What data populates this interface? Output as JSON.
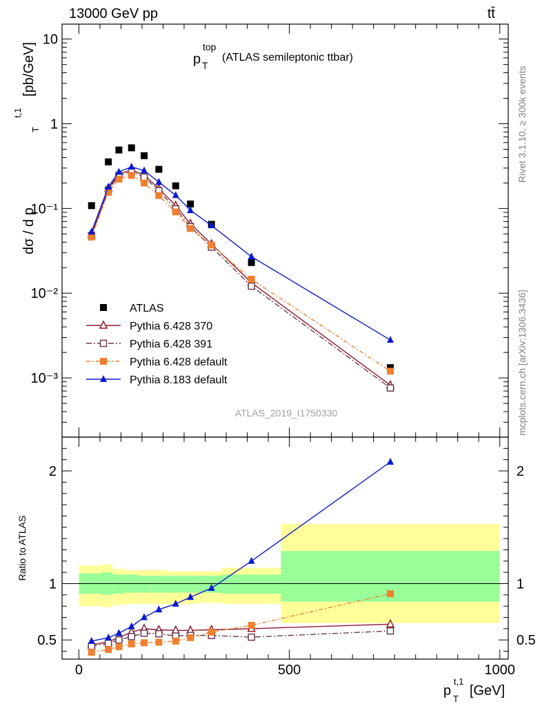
{
  "header": {
    "left": "13000 GeV pp",
    "right": "tt̄"
  },
  "side_labels": {
    "rivet": "Rivet 3.1.10, ≥ 300k events",
    "mcplots": "mcplots.cern.ch [arXiv:1306.3436]"
  },
  "colors": {
    "atlas": "#000000",
    "p370": "#8b1a2b",
    "p391": "#6b3a4a",
    "pdefault": "#f08030",
    "p8183": "#0a1ad0",
    "band_outer": "#ffff99",
    "band_inner": "#99ff99"
  },
  "chart_data": [
    {
      "type": "scatter",
      "title_main": "p",
      "title_sup": "top",
      "title_sub": "T",
      "title_rest": "(ATLAS semileptonic ttbar)",
      "ylabel": "dσ / d p",
      "ylabel_sup": "t,1",
      "ylabel_sub": "T",
      "ylabel_unit": "[pb/GeV]",
      "yscale": "log",
      "ylim": [
        0.0002,
        15
      ],
      "xlim": [
        -40,
        1020
      ],
      "watermark": "ATLAS_2019_I1750330",
      "y_tick_labels": [
        "10",
        "1",
        "10⁻¹",
        "10⁻²",
        "10⁻³"
      ],
      "y_tick_values": [
        10,
        1,
        0.1,
        0.01,
        0.001
      ],
      "x": [
        30,
        70,
        95,
        125,
        155,
        190,
        230,
        265,
        315,
        410,
        740
      ],
      "series": [
        {
          "name": "ATLAS",
          "marker": "square",
          "values": [
            0.108,
            0.355,
            0.49,
            0.52,
            0.42,
            0.29,
            0.185,
            0.113,
            0.065,
            0.023,
            0.00132
          ]
        },
        {
          "name": "Pythia 6.428 370",
          "marker": "triangle-open",
          "values": [
            0.049,
            0.172,
            0.255,
            0.285,
            0.248,
            0.172,
            0.108,
            0.066,
            0.038,
            0.0133,
            0.00082
          ]
        },
        {
          "name": "Pythia 6.428 391",
          "marker": "square-open",
          "values": [
            0.048,
            0.165,
            0.245,
            0.275,
            0.235,
            0.162,
            0.099,
            0.061,
            0.035,
            0.0121,
            0.00076
          ]
        },
        {
          "name": "Pythia 6.428 default",
          "marker": "square",
          "values": [
            0.046,
            0.155,
            0.222,
            0.246,
            0.2,
            0.142,
            0.091,
            0.058,
            0.037,
            0.0146,
            0.0012
          ]
        },
        {
          "name": "Pythia 8.183 default",
          "marker": "triangle",
          "values": [
            0.053,
            0.18,
            0.27,
            0.31,
            0.28,
            0.205,
            0.143,
            0.095,
            0.063,
            0.027,
            0.0028
          ]
        }
      ]
    },
    {
      "type": "line",
      "ylabel": "Ratio to ATLAS",
      "xlabel": "p",
      "xlabel_sup": "t,1",
      "xlabel_sub": "T",
      "xlabel_unit": "[GeV]",
      "ylim": [
        0.33,
        2.3
      ],
      "xlim": [
        -40,
        1020
      ],
      "x_ticks": [
        0,
        500,
        1000
      ],
      "x_tick_labels": [
        "0",
        "500",
        "1000"
      ],
      "y_ticks": [
        0.5,
        1,
        2
      ],
      "y_tick_labels": [
        "0.5",
        "1",
        "2"
      ],
      "band_bins": [
        {
          "x0": 0,
          "x1": 55,
          "outer": [
            0.8,
            1.16
          ],
          "inner": [
            0.91,
            1.09
          ]
        },
        {
          "x0": 55,
          "x1": 80,
          "outer": [
            0.79,
            1.17
          ],
          "inner": [
            0.9,
            1.1
          ]
        },
        {
          "x0": 80,
          "x1": 110,
          "outer": [
            0.81,
            1.13
          ],
          "inner": [
            0.91,
            1.08
          ]
        },
        {
          "x0": 110,
          "x1": 140,
          "outer": [
            0.82,
            1.12
          ],
          "inner": [
            0.92,
            1.08
          ]
        },
        {
          "x0": 140,
          "x1": 170,
          "outer": [
            0.82,
            1.12
          ],
          "inner": [
            0.92,
            1.07
          ]
        },
        {
          "x0": 170,
          "x1": 210,
          "outer": [
            0.82,
            1.12
          ],
          "inner": [
            0.92,
            1.07
          ]
        },
        {
          "x0": 210,
          "x1": 250,
          "outer": [
            0.82,
            1.11
          ],
          "inner": [
            0.92,
            1.07
          ]
        },
        {
          "x0": 250,
          "x1": 280,
          "outer": [
            0.82,
            1.11
          ],
          "inner": [
            0.92,
            1.07
          ]
        },
        {
          "x0": 280,
          "x1": 340,
          "outer": [
            0.83,
            1.11
          ],
          "inner": [
            0.92,
            1.07
          ]
        },
        {
          "x0": 340,
          "x1": 480,
          "outer": [
            0.82,
            1.14
          ],
          "inner": [
            0.91,
            1.08
          ]
        },
        {
          "x0": 480,
          "x1": 1000,
          "outer": [
            0.65,
            1.53
          ],
          "inner": [
            0.84,
            1.29
          ]
        }
      ],
      "x": [
        30,
        70,
        95,
        125,
        155,
        190,
        230,
        265,
        315,
        410,
        740
      ],
      "series": [
        {
          "name": "Pythia 6.428 370",
          "marker": "triangle-open",
          "values": [
            0.455,
            0.485,
            0.52,
            0.57,
            0.6,
            0.59,
            0.585,
            0.585,
            0.59,
            0.6,
            0.64
          ]
        },
        {
          "name": "Pythia 6.428 391",
          "marker": "square-open",
          "values": [
            0.445,
            0.47,
            0.5,
            0.53,
            0.56,
            0.555,
            0.535,
            0.54,
            0.54,
            0.525,
            0.58
          ]
        },
        {
          "name": "Pythia 6.428 default",
          "marker": "square",
          "values": [
            0.39,
            0.415,
            0.44,
            0.465,
            0.475,
            0.48,
            0.49,
            0.52,
            0.57,
            0.63,
            0.91
          ]
        },
        {
          "name": "Pythia 8.183 default",
          "marker": "triangle",
          "values": [
            0.49,
            0.52,
            0.56,
            0.62,
            0.7,
            0.77,
            0.82,
            0.88,
            0.96,
            1.2,
            2.08
          ]
        }
      ]
    }
  ]
}
